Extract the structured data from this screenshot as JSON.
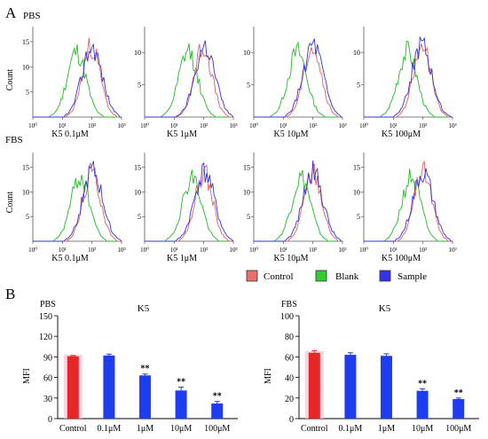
{
  "panel_labels": {
    "a": "A",
    "b": "B"
  },
  "row_labels": {
    "pbs": "PBS",
    "fbs": "FBS"
  },
  "histogram_ylabel": "Count",
  "histogram_xticks": [
    "10⁰",
    "10¹",
    "10²",
    "10³"
  ],
  "legend": [
    {
      "label": "Control",
      "color": "#e8706a"
    },
    {
      "label": "Blank",
      "color": "#33cc33"
    },
    {
      "label": "Sample",
      "color": "#3333ee"
    }
  ],
  "histogram_yticks_pbs_0": [
    "15",
    "10",
    "5"
  ],
  "histogram_yticks_pbs": [
    "10",
    "5"
  ],
  "histogram_yticks_fbs": [
    "15",
    "10",
    "5"
  ],
  "colors": {
    "control": "#e06060",
    "blank": "#22bb22",
    "sample": "#3333dd",
    "red_bar": "#e8262a",
    "blue_bar": "#1e3cf0",
    "axis": "#555555"
  },
  "chart_data": [
    {
      "type": "line",
      "panel": "A",
      "description_row": "PBS",
      "xscale": "log",
      "xlim": [
        1,
        1000
      ],
      "panels": [
        {
          "caption": "K5 0.1μM",
          "peaks": {
            "blank": 30,
            "control": 95,
            "sample": 100
          }
        },
        {
          "caption": "K5 1μM",
          "peaks": {
            "blank": 30,
            "control": 95,
            "sample": 110
          }
        },
        {
          "caption": "K5 10μM",
          "peaks": {
            "blank": 30,
            "control": 95,
            "sample": 100
          }
        },
        {
          "caption": "K5 100μM",
          "peaks": {
            "blank": 30,
            "control": 95,
            "sample": 90
          }
        }
      ]
    },
    {
      "type": "line",
      "panel": "A",
      "description_row": "FBS",
      "xscale": "log",
      "xlim": [
        1,
        1000
      ],
      "panels": [
        {
          "caption": "K5 0.1μM",
          "peaks": {
            "blank": 40,
            "control": 100,
            "sample": 105
          }
        },
        {
          "caption": "K5 1μM",
          "peaks": {
            "blank": 40,
            "control": 100,
            "sample": 105
          }
        },
        {
          "caption": "K5 10μM",
          "peaks": {
            "blank": 40,
            "control": 100,
            "sample": 100
          }
        },
        {
          "caption": "K5 100μM",
          "peaks": {
            "blank": 40,
            "control": 100,
            "sample": 100
          }
        }
      ]
    },
    {
      "type": "bar",
      "panel": "B",
      "label": "PBS",
      "title": "K5",
      "ylabel": "MFI",
      "ylim": [
        0,
        150
      ],
      "yticks": [
        0,
        30,
        60,
        90,
        120,
        150
      ],
      "categories": [
        "Control",
        "0.1μM",
        "1μM",
        "10μM",
        "100μM"
      ],
      "values": [
        91,
        92,
        63,
        41,
        22
      ],
      "errors": [
        1,
        2,
        2,
        5,
        3
      ],
      "significance": [
        "",
        "",
        "**",
        "**",
        "**"
      ]
    },
    {
      "type": "bar",
      "panel": "B",
      "label": "FBS",
      "title": "K5",
      "ylabel": "MFI",
      "ylim": [
        0,
        100
      ],
      "yticks": [
        0,
        20,
        40,
        60,
        80,
        100
      ],
      "categories": [
        "Control",
        "0.1μM",
        "1μM",
        "10μM",
        "100μM"
      ],
      "values": [
        64,
        62,
        61,
        27,
        19
      ],
      "errors": [
        2,
        2,
        2,
        2,
        1
      ],
      "significance": [
        "",
        "",
        "",
        "**",
        "**"
      ]
    }
  ]
}
